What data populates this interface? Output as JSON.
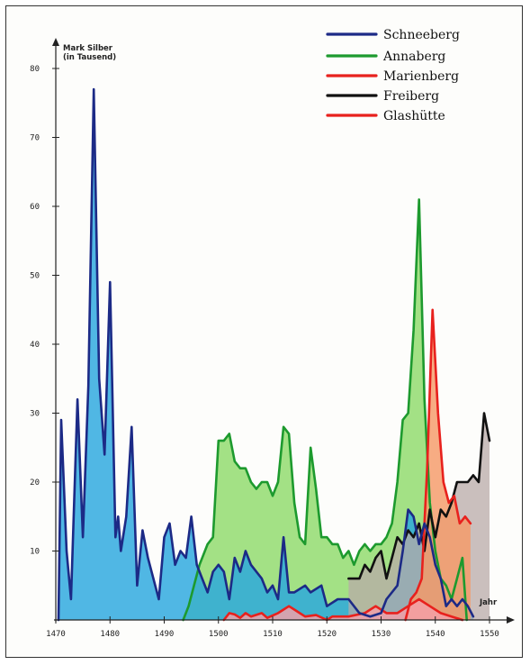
{
  "chart_data": {
    "type": "area",
    "ylabel_line1": "Mark Silber",
    "ylabel_line2": "(in Tausend)",
    "xlabel": "Jahr",
    "xlim": [
      1470,
      1553
    ],
    "ylim": [
      0,
      85
    ],
    "x_ticks": [
      1470,
      1480,
      1490,
      1500,
      1510,
      1520,
      1530,
      1540,
      1550
    ],
    "y_ticks": [
      10,
      20,
      30,
      40,
      50,
      60,
      70,
      80
    ],
    "legend_position": "top-right",
    "series": [
      {
        "name": "Schneeberg",
        "color": "#1c2a86",
        "fill": "#2aa7de",
        "points": [
          [
            1470.5,
            0
          ],
          [
            1471,
            29
          ],
          [
            1472,
            10
          ],
          [
            1472.8,
            3
          ],
          [
            1474,
            32
          ],
          [
            1475,
            12
          ],
          [
            1476,
            34
          ],
          [
            1477,
            77
          ],
          [
            1478,
            35
          ],
          [
            1479,
            24
          ],
          [
            1480,
            49
          ],
          [
            1481,
            12
          ],
          [
            1481.5,
            15
          ],
          [
            1482,
            10
          ],
          [
            1483,
            15
          ],
          [
            1484,
            28
          ],
          [
            1485,
            5
          ],
          [
            1486,
            13
          ],
          [
            1487,
            9
          ],
          [
            1489,
            3
          ],
          [
            1490,
            12
          ],
          [
            1491,
            14
          ],
          [
            1492,
            8
          ],
          [
            1493,
            10
          ],
          [
            1494,
            9
          ],
          [
            1495,
            15
          ],
          [
            1496,
            8
          ],
          [
            1497,
            6
          ],
          [
            1498,
            4
          ],
          [
            1499,
            7
          ],
          [
            1500,
            8
          ],
          [
            1501,
            7
          ],
          [
            1502,
            3
          ],
          [
            1503,
            9
          ],
          [
            1504,
            7
          ],
          [
            1505,
            10
          ],
          [
            1506,
            8
          ],
          [
            1508,
            6
          ],
          [
            1509,
            4
          ],
          [
            1510,
            5
          ],
          [
            1511,
            3
          ],
          [
            1512,
            12
          ],
          [
            1513,
            4
          ],
          [
            1514,
            4
          ],
          [
            1516,
            5
          ],
          [
            1517,
            4
          ],
          [
            1519,
            5
          ],
          [
            1520,
            2
          ],
          [
            1522,
            3
          ],
          [
            1524,
            3
          ],
          [
            1526,
            1
          ],
          [
            1528,
            0.5
          ],
          [
            1530,
            1
          ],
          [
            1531,
            3
          ],
          [
            1533,
            5
          ],
          [
            1534,
            10
          ],
          [
            1535,
            16
          ],
          [
            1536,
            15
          ],
          [
            1537,
            11
          ],
          [
            1538,
            14
          ],
          [
            1539,
            12
          ],
          [
            1540,
            8
          ],
          [
            1541,
            6
          ],
          [
            1542,
            2
          ],
          [
            1543,
            3
          ],
          [
            1544,
            2
          ],
          [
            1545,
            3
          ],
          [
            1546,
            2
          ],
          [
            1547,
            0.5
          ]
        ]
      },
      {
        "name": "Annaberg",
        "color": "#1d9a2e",
        "fill": "#8fdb6a",
        "points": [
          [
            1493.5,
            0
          ],
          [
            1494.5,
            2
          ],
          [
            1495.5,
            5
          ],
          [
            1496.5,
            8
          ],
          [
            1498,
            11
          ],
          [
            1499,
            12
          ],
          [
            1500,
            26
          ],
          [
            1501,
            26
          ],
          [
            1502,
            27
          ],
          [
            1503,
            23
          ],
          [
            1504,
            22
          ],
          [
            1505,
            22
          ],
          [
            1506,
            20
          ],
          [
            1507,
            19
          ],
          [
            1508,
            20
          ],
          [
            1509,
            20
          ],
          [
            1510,
            18
          ],
          [
            1511,
            20
          ],
          [
            1512,
            28
          ],
          [
            1513,
            27
          ],
          [
            1514,
            17
          ],
          [
            1515,
            12
          ],
          [
            1516,
            11
          ],
          [
            1517,
            25
          ],
          [
            1518,
            19
          ],
          [
            1519,
            12
          ],
          [
            1520,
            12
          ],
          [
            1521,
            11
          ],
          [
            1522,
            11
          ],
          [
            1523,
            9
          ],
          [
            1524,
            10
          ],
          [
            1525,
            8
          ],
          [
            1526,
            10
          ],
          [
            1527,
            11
          ],
          [
            1528,
            10
          ],
          [
            1529,
            11
          ],
          [
            1530,
            11
          ],
          [
            1531,
            12
          ],
          [
            1532,
            14
          ],
          [
            1533,
            20
          ],
          [
            1534,
            29
          ],
          [
            1535,
            30
          ],
          [
            1536,
            42
          ],
          [
            1537,
            61
          ],
          [
            1538,
            32
          ],
          [
            1539,
            17
          ],
          [
            1540,
            10
          ],
          [
            1541,
            6
          ],
          [
            1542,
            5
          ],
          [
            1543,
            3
          ],
          [
            1544,
            6
          ],
          [
            1545,
            9
          ],
          [
            1545.8,
            0
          ]
        ]
      },
      {
        "name": "Marienberg",
        "color": "#e8211d",
        "fill": "#f59a68",
        "points": [
          [
            1534.5,
            0
          ],
          [
            1535.5,
            3
          ],
          [
            1536.5,
            4
          ],
          [
            1537.5,
            6
          ],
          [
            1538.5,
            22
          ],
          [
            1539.5,
            45
          ],
          [
            1540.5,
            30
          ],
          [
            1541.5,
            20
          ],
          [
            1542.5,
            17
          ],
          [
            1543.5,
            18
          ],
          [
            1544.5,
            14
          ],
          [
            1545.5,
            15
          ],
          [
            1546.5,
            14
          ]
        ]
      },
      {
        "name": "Freiberg",
        "color": "#111111",
        "fill": "#b8aaa8",
        "points": [
          [
            1524,
            6
          ],
          [
            1526,
            6
          ],
          [
            1527,
            8
          ],
          [
            1528,
            7
          ],
          [
            1529,
            9
          ],
          [
            1530,
            10
          ],
          [
            1531,
            6
          ],
          [
            1532,
            9
          ],
          [
            1533,
            12
          ],
          [
            1534,
            11
          ],
          [
            1535,
            13
          ],
          [
            1536,
            12
          ],
          [
            1537,
            14
          ],
          [
            1538,
            10
          ],
          [
            1539,
            16
          ],
          [
            1540,
            12
          ],
          [
            1541,
            16
          ],
          [
            1542,
            15
          ],
          [
            1543,
            17
          ],
          [
            1544,
            20
          ],
          [
            1546,
            20
          ],
          [
            1547,
            21
          ],
          [
            1548,
            20
          ],
          [
            1549,
            30
          ],
          [
            1550,
            26
          ]
        ]
      },
      {
        "name": "Glashütte",
        "color": "#e8211d",
        "fill": "#f4a0a8",
        "points": [
          [
            1501,
            0
          ],
          [
            1502,
            1
          ],
          [
            1503,
            0.8
          ],
          [
            1504,
            0.3
          ],
          [
            1505,
            1
          ],
          [
            1506,
            0.5
          ],
          [
            1508,
            1
          ],
          [
            1509,
            0.3
          ],
          [
            1511,
            1
          ],
          [
            1512,
            1.5
          ],
          [
            1513,
            2
          ],
          [
            1514,
            1.5
          ],
          [
            1515,
            1
          ],
          [
            1516,
            0.5
          ],
          [
            1518,
            0.7
          ],
          [
            1520,
            0
          ],
          [
            1521,
            0.5
          ],
          [
            1524,
            0.5
          ],
          [
            1527,
            1
          ],
          [
            1529,
            2
          ],
          [
            1531,
            1
          ],
          [
            1533,
            1
          ],
          [
            1535,
            2
          ],
          [
            1537,
            3
          ],
          [
            1539,
            2
          ],
          [
            1541,
            1
          ],
          [
            1543,
            0.5
          ],
          [
            1545,
            0
          ]
        ]
      }
    ]
  }
}
